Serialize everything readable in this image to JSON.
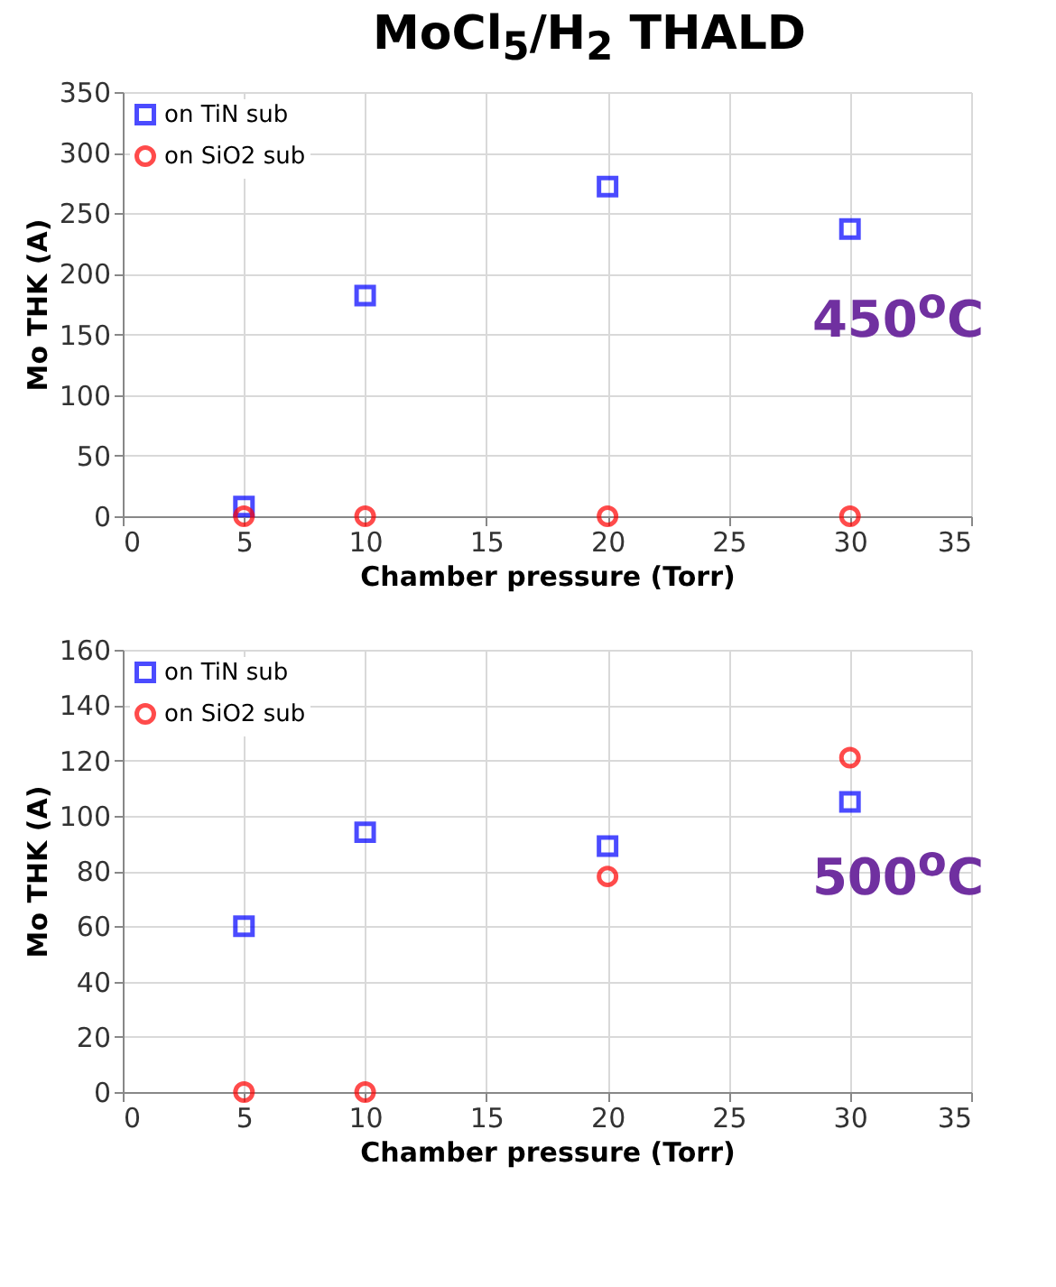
{
  "chart_data": [
    {
      "type": "scatter",
      "title": "MoCl$_{5}$/H$_{2}$ THALD",
      "xlabel": "Chamber pressure (Torr)",
      "ylabel": "Mo THK (A)",
      "x": [
        5,
        10,
        20,
        30
      ],
      "xlim": [
        0,
        35
      ],
      "xticks": [
        0,
        5,
        10,
        15,
        20,
        25,
        30,
        35
      ],
      "ylim": [
        0,
        350
      ],
      "yticks": [
        0,
        50,
        100,
        150,
        200,
        250,
        300,
        350
      ],
      "grid": true,
      "legend": "top left",
      "annotations": [
        "450$^{o}$C"
      ],
      "series": [
        {
          "name": "on TiN sub",
          "color": "#0000ff",
          "marker": "square",
          "values": [
            8,
            182,
            272,
            237
          ]
        },
        {
          "name": "on SiO2 sub",
          "color": "#ff0000",
          "marker": "circle",
          "values": [
            0,
            0,
            0,
            0
          ]
        }
      ]
    },
    {
      "type": "scatter",
      "xlabel": "Chamber pressure (Torr)",
      "ylabel": "Mo THK (A)",
      "x": [
        5,
        10,
        20,
        30
      ],
      "xlim": [
        0,
        35
      ],
      "xticks": [
        0,
        5,
        10,
        15,
        20,
        25,
        30,
        35
      ],
      "ylim": [
        0,
        160
      ],
      "yticks": [
        0,
        20,
        40,
        60,
        80,
        100,
        120,
        140,
        160
      ],
      "grid": true,
      "legend": "top left",
      "annotations": [
        "500$^{o}$C"
      ],
      "series": [
        {
          "name": "on TiN sub",
          "color": "#0000ff",
          "marker": "square",
          "values": [
            60,
            94,
            89,
            105
          ]
        },
        {
          "name": "on SiO2 sub",
          "color": "#ff0000",
          "marker": "circle",
          "values": [
            0,
            0,
            78,
            121
          ]
        }
      ]
    }
  ]
}
